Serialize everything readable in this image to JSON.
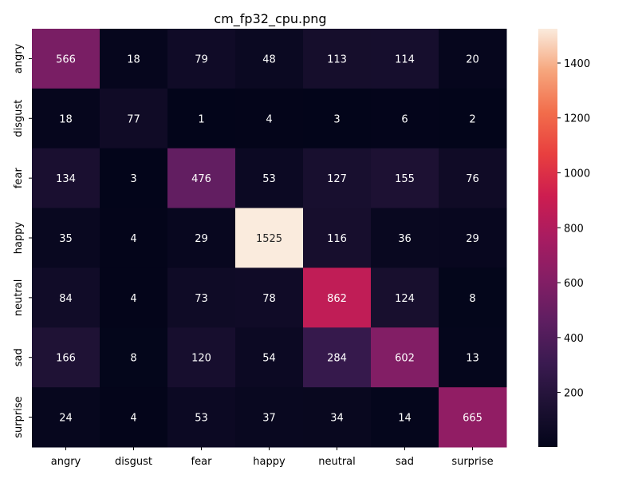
{
  "chart_data": {
    "type": "heatmap",
    "title": "cm_fp32_cpu.png",
    "xlabel": "",
    "ylabel": "",
    "x_categories": [
      "angry",
      "disgust",
      "fear",
      "happy",
      "neutral",
      "sad",
      "surprise"
    ],
    "y_categories": [
      "angry",
      "disgust",
      "fear",
      "happy",
      "neutral",
      "sad",
      "surprise"
    ],
    "values": [
      [
        566,
        18,
        79,
        48,
        113,
        114,
        20
      ],
      [
        18,
        77,
        1,
        4,
        3,
        6,
        2
      ],
      [
        134,
        3,
        476,
        53,
        127,
        155,
        76
      ],
      [
        35,
        4,
        29,
        1525,
        116,
        36,
        29
      ],
      [
        84,
        4,
        73,
        78,
        862,
        124,
        8
      ],
      [
        166,
        8,
        120,
        54,
        284,
        602,
        13
      ],
      [
        24,
        4,
        53,
        37,
        34,
        14,
        665
      ]
    ],
    "colorbar": {
      "min": 1,
      "max": 1525,
      "ticks": [
        200,
        400,
        600,
        800,
        1000,
        1200,
        1400
      ]
    },
    "colormap": "rocket",
    "grid": false
  }
}
